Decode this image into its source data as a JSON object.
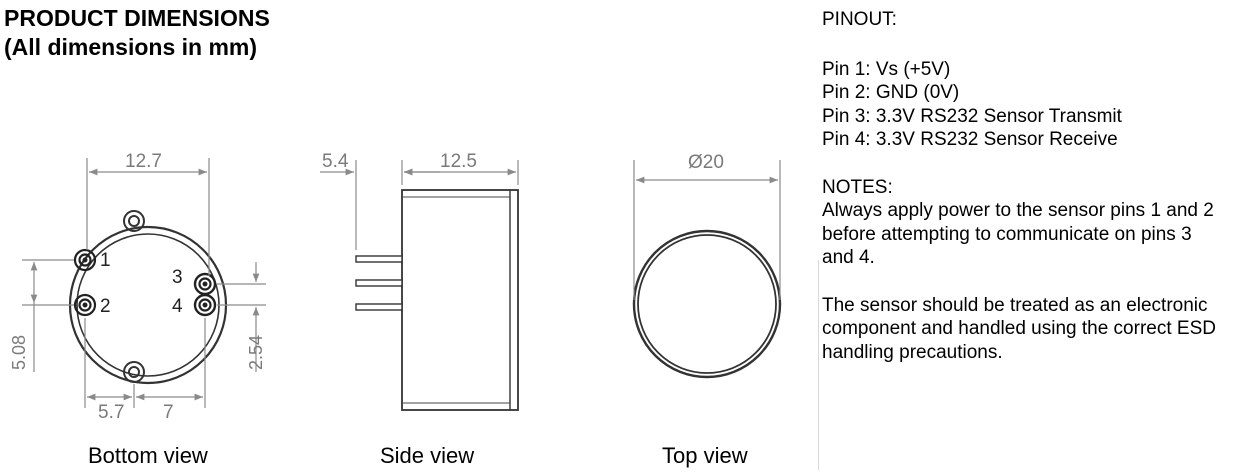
{
  "title": {
    "line1": "PRODUCT DIMENSIONS",
    "line2": "(All dimensions in mm)"
  },
  "pinout": {
    "heading": "PINOUT:",
    "pins": [
      "Pin 1: Vs (+5V)",
      "Pin 2: GND (0V)",
      "Pin 3: 3.3V RS232 Sensor Transmit",
      "Pin 4: 3.3V RS232 Sensor Receive"
    ]
  },
  "notes": {
    "heading": "NOTES:",
    "note1": "Always apply power to the sensor pins 1 and 2 before attempting to communicate on pins 3 and 4.",
    "note2": "The sensor should be treated as an electronic component and handled using the correct ESD handling precautions."
  },
  "views": {
    "bottom": {
      "caption": "Bottom view",
      "dim_width": "12.7",
      "dim_left": "5.08",
      "dim_right": "2.54",
      "dim_bottom_left": "5.7",
      "dim_bottom_right": "7",
      "pin_labels": [
        "1",
        "2",
        "3",
        "4"
      ]
    },
    "side": {
      "caption": "Side view",
      "dim_pin_length": "5.4",
      "dim_body_length": "12.5"
    },
    "top": {
      "caption": "Top view",
      "dim_diameter": "Ø20"
    }
  }
}
